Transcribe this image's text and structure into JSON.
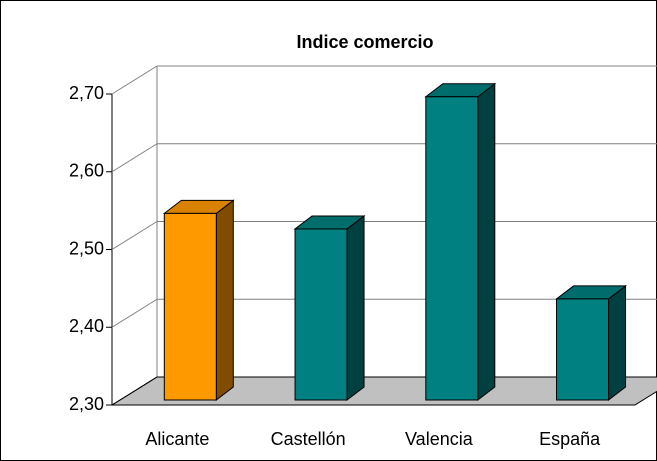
{
  "chart_data": {
    "type": "bar3d",
    "title": "Indice comercio",
    "categories": [
      "Alicante",
      "Castellón",
      "Valencia",
      "España"
    ],
    "values": [
      2.54,
      2.52,
      2.69,
      2.43
    ],
    "colors": [
      "#ff9900",
      "#008080",
      "#008080",
      "#008080"
    ],
    "ylim": [
      2.3,
      2.7
    ],
    "yticks": [
      {
        "value": 2.3,
        "label": "2,30"
      },
      {
        "value": 2.4,
        "label": "2,40"
      },
      {
        "value": 2.5,
        "label": "2,50"
      },
      {
        "value": 2.6,
        "label": "2,60"
      },
      {
        "value": 2.7,
        "label": "2,70"
      }
    ],
    "grid": true
  }
}
